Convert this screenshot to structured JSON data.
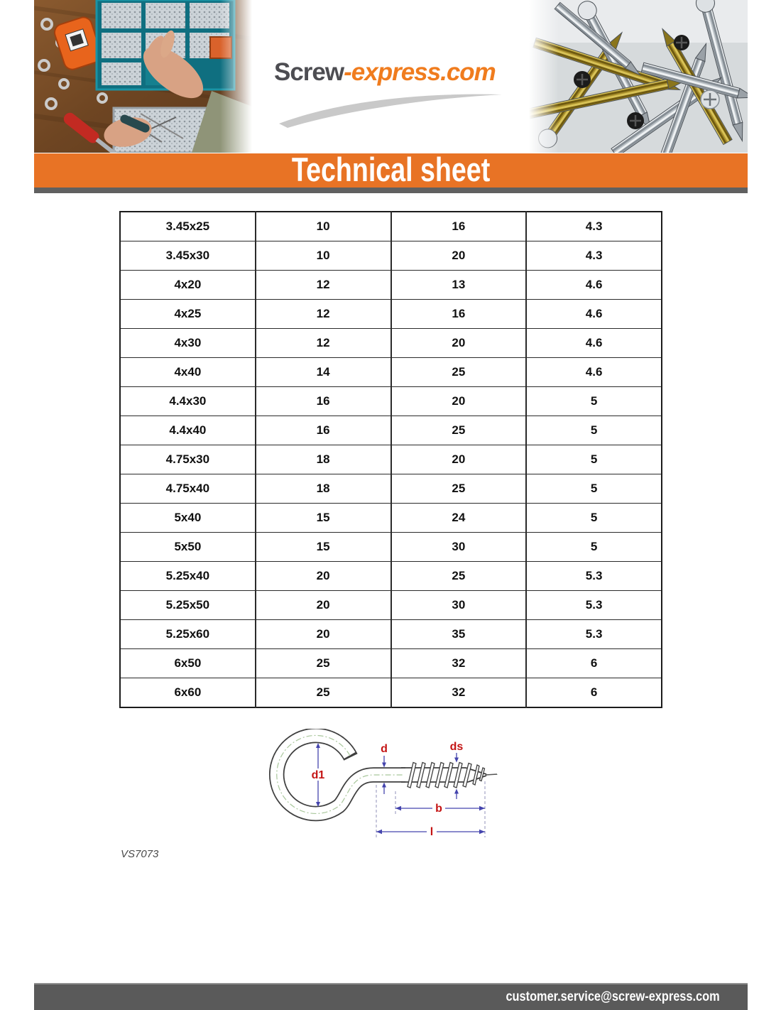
{
  "logo": {
    "gray_part": "Screw",
    "orange_part": "-express.com"
  },
  "banner": {
    "title": "Technical sheet"
  },
  "header_images": {
    "left_photo": "workbench-with-tools-hands-and-screw-organizer",
    "right_photo": "pile-of-metal-screws"
  },
  "spec_table": {
    "rows": [
      [
        "3.45x25",
        "10",
        "16",
        "4.3"
      ],
      [
        "3.45x30",
        "10",
        "20",
        "4.3"
      ],
      [
        "4x20",
        "12",
        "13",
        "4.6"
      ],
      [
        "4x25",
        "12",
        "16",
        "4.6"
      ],
      [
        "4x30",
        "12",
        "20",
        "4.6"
      ],
      [
        "4x40",
        "14",
        "25",
        "4.6"
      ],
      [
        "4.4x30",
        "16",
        "20",
        "5"
      ],
      [
        "4.4x40",
        "16",
        "25",
        "5"
      ],
      [
        "4.75x30",
        "18",
        "20",
        "5"
      ],
      [
        "4.75x40",
        "18",
        "25",
        "5"
      ],
      [
        "5x40",
        "15",
        "24",
        "5"
      ],
      [
        "5x50",
        "15",
        "30",
        "5"
      ],
      [
        "5.25x40",
        "20",
        "25",
        "5.3"
      ],
      [
        "5.25x50",
        "20",
        "30",
        "5.3"
      ],
      [
        "5.25x60",
        "20",
        "35",
        "5.3"
      ],
      [
        "6x50",
        "25",
        "32",
        "6"
      ],
      [
        "6x60",
        "25",
        "32",
        "6"
      ]
    ]
  },
  "diagram": {
    "labels": {
      "d1": "d1",
      "d": "d",
      "ds": "ds",
      "b": "b",
      "l": "l"
    }
  },
  "product_code": "VS7073",
  "footer": {
    "email": "customer.service@screw-express.com"
  },
  "colors": {
    "accent_orange": "#e87325",
    "logo_orange": "#f07c1e",
    "banner_shadow_gray": "#606060",
    "footer_gray": "#5a5a5a",
    "dimension_blue": "#4444ad",
    "label_red": "#c41414",
    "centerline_green": "#a9c79c"
  }
}
